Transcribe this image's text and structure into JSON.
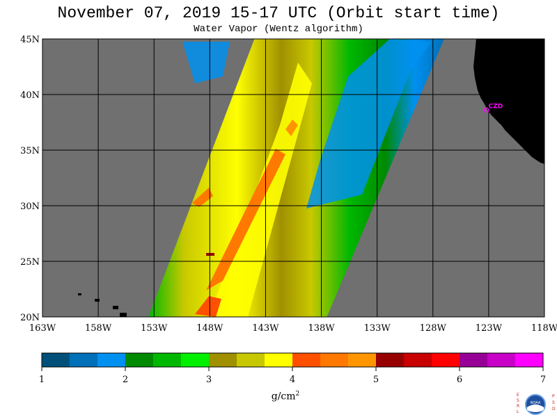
{
  "title": "November 07, 2019  15-17 UTC  (Orbit start time)",
  "subtitle": "Water Vapor (Wentz algorithm)",
  "station_label": "CZD",
  "colorbar": {
    "colors": [
      "#00507a",
      "#0070b8",
      "#0090f0",
      "#008a00",
      "#00b800",
      "#00f000",
      "#a09000",
      "#c8c800",
      "#ffff00",
      "#ff5000",
      "#ff7800",
      "#ff9600",
      "#960000",
      "#c80000",
      "#ff0000",
      "#960096",
      "#c800c8",
      "#ff00ff"
    ],
    "tick_values": [
      "1",
      "2",
      "3",
      "4",
      "5",
      "6",
      "7"
    ],
    "units_base": "g/cm",
    "units_exp": "2"
  },
  "logo": {
    "letters_left": [
      "E",
      "S",
      "R",
      "L"
    ],
    "letters_right": [
      "P",
      "S",
      "D"
    ],
    "center_text": "NOAA"
  },
  "chart_data": {
    "type": "heatmap",
    "title": "November 07, 2019  15-17 UTC  (Orbit start time)",
    "subtitle": "Water Vapor (Wentz algorithm)",
    "xlabel": "",
    "ylabel": "",
    "xlim": [
      -163,
      -118
    ],
    "ylim": [
      20,
      45
    ],
    "x_ticks": [
      "163W",
      "158W",
      "153W",
      "148W",
      "143W",
      "138W",
      "133W",
      "128W",
      "123W",
      "118W"
    ],
    "y_ticks": [
      "20N",
      "25N",
      "30N",
      "35N",
      "40N",
      "45N"
    ],
    "grid": true,
    "value_range": [
      1,
      7
    ],
    "units": "g/cm2",
    "swath_corners": [
      [
        -153.5,
        20
      ],
      [
        -137.5,
        20
      ],
      [
        -127,
        45
      ],
      [
        -144,
        45
      ]
    ],
    "land_color": "#000000",
    "no_data_color": "#707070",
    "station": {
      "name": "CZD",
      "lon": -123.2,
      "lat": 38.6
    }
  }
}
